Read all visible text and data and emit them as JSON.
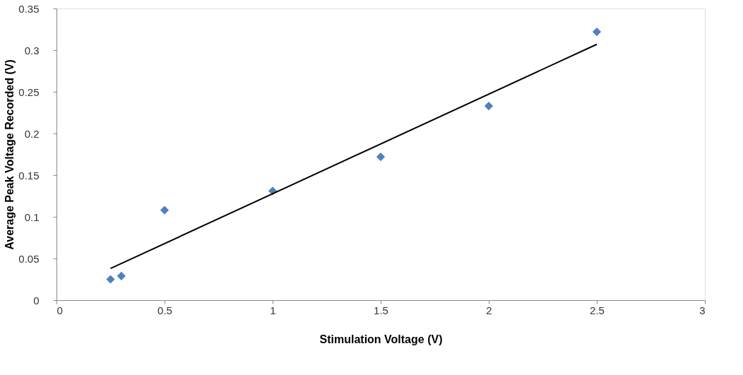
{
  "chart_data": {
    "type": "scatter",
    "xlabel": "Stimulation Voltage (V)",
    "ylabel": "Average Peak Voltage Recorded (V)",
    "xlim": [
      0,
      3
    ],
    "xticks": [
      0,
      0.5,
      1,
      1.5,
      2,
      2.5,
      3
    ],
    "ylim": [
      0,
      0.35
    ],
    "yticks": [
      0,
      0.05,
      0.1,
      0.15,
      0.2,
      0.25,
      0.3,
      0.35
    ],
    "grid": false,
    "marker": "diamond",
    "series": [
      {
        "color": "#4f81bd",
        "x": [
          0.25,
          0.3,
          0.5,
          1,
          1.5,
          2,
          2.5
        ],
        "values": [
          0.025,
          0.029,
          0.108,
          0.131,
          0.172,
          0.233,
          0.322
        ]
      },
      {
        "type": "line",
        "color": "#000000",
        "x": [
          0.25,
          2.5
        ],
        "values": [
          0.038,
          0.307
        ],
        "line_style": "solid",
        "marker": "none"
      }
    ]
  }
}
